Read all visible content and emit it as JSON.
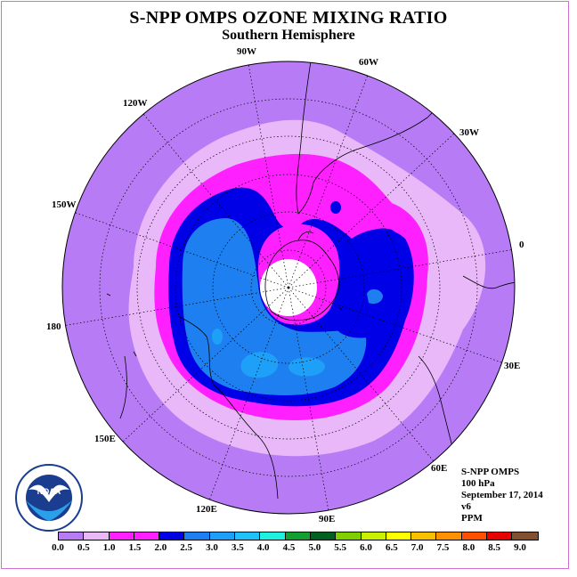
{
  "title": "S-NPP OMPS OZONE MIXING RATIO",
  "subtitle": "Southern Hemisphere",
  "longitude_labels": [
    {
      "key": "90W",
      "text": "90W"
    },
    {
      "key": "60W",
      "text": "60W"
    },
    {
      "key": "30W",
      "text": "30W"
    },
    {
      "key": "0",
      "text": "0"
    },
    {
      "key": "30E",
      "text": "30E"
    },
    {
      "key": "60E",
      "text": "60E"
    },
    {
      "key": "90E",
      "text": "90E"
    },
    {
      "key": "120E",
      "text": "120E"
    },
    {
      "key": "150E",
      "text": "150E"
    },
    {
      "key": "180",
      "text": "180"
    },
    {
      "key": "150W",
      "text": "150W"
    },
    {
      "key": "120W",
      "text": "120W"
    }
  ],
  "info": {
    "instrument": "S-NPP OMPS",
    "level": "100 hPa",
    "date": "September 17, 2014",
    "version": "v6",
    "units": "PPM"
  },
  "logo": {
    "text": "NOAA",
    "icon": "noaa-logo-icon"
  },
  "colorbar": {
    "colors": [
      "#b77cf5",
      "#e8b8f8",
      "#ff20ff",
      "#ff20ff",
      "#0000e6",
      "#1e80f0",
      "#1ea0f8",
      "#20c0f8",
      "#20f0e0",
      "#14a030",
      "#006020",
      "#80d000",
      "#c8f000",
      "#ffff00",
      "#f8c000",
      "#ff9000",
      "#ff5000",
      "#e80000",
      "#805030"
    ],
    "ticks": [
      "0.0",
      "0.5",
      "1.0",
      "1.5",
      "2.0",
      "2.5",
      "3.0",
      "3.5",
      "4.0",
      "4.5",
      "5.0",
      "5.5",
      "6.0",
      "6.5",
      "7.0",
      "7.5",
      "8.0",
      "8.5",
      "9.0"
    ]
  }
}
